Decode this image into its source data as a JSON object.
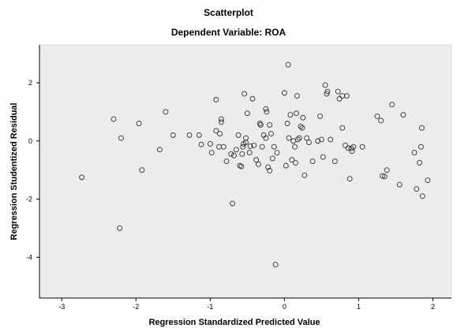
{
  "chart_data": {
    "type": "scatter",
    "title": "Scatterplot",
    "subtitle": "Dependent Variable: ROA",
    "xlabel": "Regression Standardized Predicted Value",
    "ylabel": "Regression Studentized Residual",
    "xlim": [
      -3.3,
      2.25
    ],
    "ylim": [
      -5.4,
      3.3
    ],
    "xticks": [
      -3,
      -2,
      -1,
      0,
      1,
      2
    ],
    "yticks": [
      -4,
      -2,
      0,
      2
    ],
    "xtick_labels": [
      "-3",
      "-2",
      "-1",
      "0",
      "1",
      "2"
    ],
    "ytick_labels": [
      "-4",
      "-2",
      "0",
      "2"
    ],
    "grid": false,
    "legend": "none",
    "colors": {
      "plot_background": "#ececec",
      "marker_stroke": "#333333",
      "axis": "#000000"
    },
    "points": [
      {
        "x": -2.73,
        "y": -1.25
      },
      {
        "x": -2.3,
        "y": 0.75
      },
      {
        "x": -2.2,
        "y": 0.1
      },
      {
        "x": -2.22,
        "y": -3.0
      },
      {
        "x": -1.96,
        "y": 0.6
      },
      {
        "x": -1.92,
        "y": -1.0
      },
      {
        "x": -1.68,
        "y": -0.3
      },
      {
        "x": -1.6,
        "y": 1.0
      },
      {
        "x": -1.5,
        "y": 0.2
      },
      {
        "x": -1.28,
        "y": 0.2
      },
      {
        "x": -1.15,
        "y": 0.2
      },
      {
        "x": -1.12,
        "y": -0.12
      },
      {
        "x": -1.0,
        "y": -0.1
      },
      {
        "x": -0.98,
        "y": -0.4
      },
      {
        "x": -0.92,
        "y": 0.35
      },
      {
        "x": -0.92,
        "y": 1.42
      },
      {
        "x": -0.88,
        "y": -0.2
      },
      {
        "x": -0.87,
        "y": 0.25
      },
      {
        "x": -0.85,
        "y": 0.75
      },
      {
        "x": -0.85,
        "y": 0.65
      },
      {
        "x": -0.82,
        "y": -0.2
      },
      {
        "x": -0.78,
        "y": -0.7
      },
      {
        "x": -0.72,
        "y": -0.45
      },
      {
        "x": -0.7,
        "y": -2.15
      },
      {
        "x": -0.68,
        "y": -0.5
      },
      {
        "x": -0.65,
        "y": -0.3
      },
      {
        "x": -0.62,
        "y": 0.2
      },
      {
        "x": -0.6,
        "y": -0.85
      },
      {
        "x": -0.58,
        "y": -0.88
      },
      {
        "x": -0.57,
        "y": -0.45
      },
      {
        "x": -0.56,
        "y": -0.2
      },
      {
        "x": -0.55,
        "y": -0.1
      },
      {
        "x": -0.54,
        "y": 1.62
      },
      {
        "x": -0.52,
        "y": 0.1
      },
      {
        "x": -0.52,
        "y": -0.05
      },
      {
        "x": -0.5,
        "y": 0.95
      },
      {
        "x": -0.47,
        "y": -0.4
      },
      {
        "x": -0.46,
        "y": -0.18
      },
      {
        "x": -0.43,
        "y": 1.45
      },
      {
        "x": -0.41,
        "y": -0.15
      },
      {
        "x": -0.38,
        "y": -0.65
      },
      {
        "x": -0.35,
        "y": -0.8
      },
      {
        "x": -0.33,
        "y": 0.6
      },
      {
        "x": -0.32,
        "y": 0.55
      },
      {
        "x": -0.3,
        "y": -0.2
      },
      {
        "x": -0.28,
        "y": 0.2
      },
      {
        "x": -0.25,
        "y": 0.1
      },
      {
        "x": -0.25,
        "y": 1.1
      },
      {
        "x": -0.24,
        "y": 1.0
      },
      {
        "x": -0.22,
        "y": -0.9
      },
      {
        "x": -0.2,
        "y": -1.02
      },
      {
        "x": -0.2,
        "y": 0.55
      },
      {
        "x": -0.18,
        "y": 0.25
      },
      {
        "x": -0.16,
        "y": -0.6
      },
      {
        "x": -0.14,
        "y": -0.2
      },
      {
        "x": -0.12,
        "y": -4.25
      },
      {
        "x": -0.1,
        "y": -0.4
      },
      {
        "x": 0.0,
        "y": 1.65
      },
      {
        "x": 0.02,
        "y": -0.85
      },
      {
        "x": 0.04,
        "y": 0.6
      },
      {
        "x": 0.05,
        "y": 2.62
      },
      {
        "x": 0.06,
        "y": 0.1
      },
      {
        "x": 0.08,
        "y": 0.9
      },
      {
        "x": 0.1,
        "y": -0.65
      },
      {
        "x": 0.12,
        "y": 0.0
      },
      {
        "x": 0.14,
        "y": -0.2
      },
      {
        "x": 0.15,
        "y": -0.75
      },
      {
        "x": 0.16,
        "y": 0.95
      },
      {
        "x": 0.17,
        "y": 1.55
      },
      {
        "x": 0.18,
        "y": 0.05
      },
      {
        "x": 0.2,
        "y": 0.1
      },
      {
        "x": 0.22,
        "y": 0.5
      },
      {
        "x": 0.24,
        "y": 0.45
      },
      {
        "x": 0.25,
        "y": 0.8
      },
      {
        "x": 0.27,
        "y": -1.18
      },
      {
        "x": 0.3,
        "y": 0.1
      },
      {
        "x": 0.33,
        "y": -0.05
      },
      {
        "x": 0.38,
        "y": -0.7
      },
      {
        "x": 0.45,
        "y": 0.0
      },
      {
        "x": 0.48,
        "y": 0.85
      },
      {
        "x": 0.5,
        "y": 0.05
      },
      {
        "x": 0.52,
        "y": -0.55
      },
      {
        "x": 0.55,
        "y": 1.92
      },
      {
        "x": 0.57,
        "y": 1.62
      },
      {
        "x": 0.58,
        "y": 1.7
      },
      {
        "x": 0.62,
        "y": 0.05
      },
      {
        "x": 0.68,
        "y": -0.7
      },
      {
        "x": 0.72,
        "y": 1.7
      },
      {
        "x": 0.74,
        "y": 1.45
      },
      {
        "x": 0.78,
        "y": 0.45
      },
      {
        "x": 0.78,
        "y": 1.55
      },
      {
        "x": 0.82,
        "y": -0.15
      },
      {
        "x": 0.84,
        "y": 1.55
      },
      {
        "x": 0.86,
        "y": -0.25
      },
      {
        "x": 0.88,
        "y": -1.3
      },
      {
        "x": 0.9,
        "y": -0.25
      },
      {
        "x": 0.91,
        "y": -0.35
      },
      {
        "x": 0.93,
        "y": -0.2
      },
      {
        "x": 1.05,
        "y": -0.2
      },
      {
        "x": 1.25,
        "y": 0.85
      },
      {
        "x": 1.3,
        "y": 0.7
      },
      {
        "x": 1.32,
        "y": -1.2
      },
      {
        "x": 1.35,
        "y": -1.22
      },
      {
        "x": 1.38,
        "y": -1.0
      },
      {
        "x": 1.45,
        "y": 1.25
      },
      {
        "x": 1.55,
        "y": -1.5
      },
      {
        "x": 1.6,
        "y": 0.9
      },
      {
        "x": 1.75,
        "y": -0.4
      },
      {
        "x": 1.78,
        "y": -1.65
      },
      {
        "x": 1.82,
        "y": -0.75
      },
      {
        "x": 1.84,
        "y": -0.2
      },
      {
        "x": 1.85,
        "y": 0.45
      },
      {
        "x": 1.86,
        "y": -1.9
      },
      {
        "x": 1.93,
        "y": -1.35
      }
    ]
  }
}
